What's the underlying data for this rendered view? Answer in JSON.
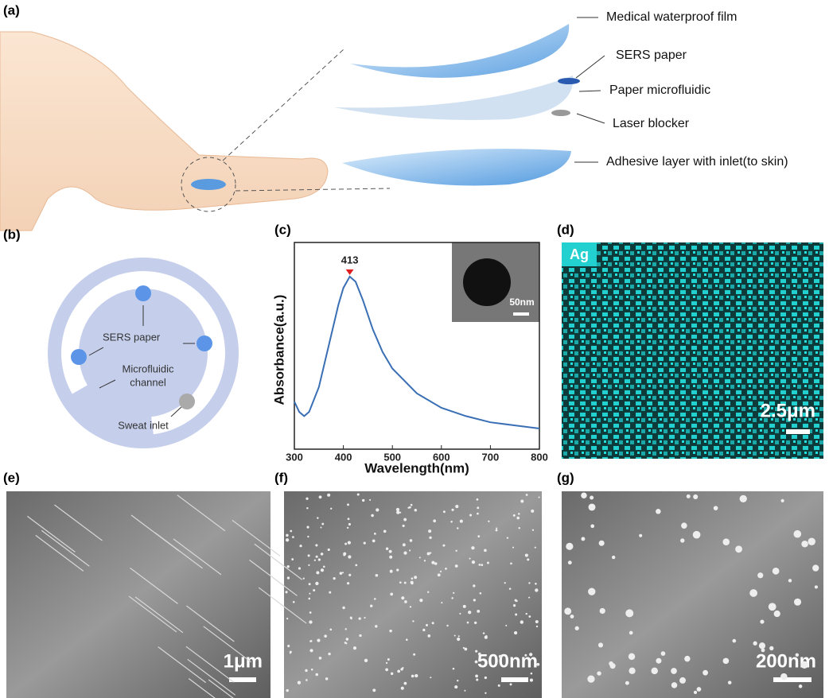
{
  "panel_labels": [
    "(a)",
    "(b)",
    "(c)",
    "(d)",
    "(e)",
    "(f)",
    "(g)"
  ],
  "panel_a": {
    "layers": [
      "Medical waterproof film",
      "SERS paper",
      "Paper microfluidic",
      "Laser blocker",
      "Adhesive layer with inlet(to skin)"
    ]
  },
  "panel_b": {
    "sers_paper": "SERS paper",
    "microfluidic_channel": [
      "Microfluidic",
      "channel"
    ],
    "sweat_inlet": "Sweat inlet"
  },
  "panel_d": {
    "element": "Ag",
    "scale_bar": "2.5μm"
  },
  "panel_e": {
    "scale_bar": "1μm"
  },
  "panel_f": {
    "scale_bar": "500nm"
  },
  "panel_g": {
    "scale_bar": "200nm"
  },
  "chart_data": {
    "type": "line",
    "xlabel": "Wavelength(nm)",
    "ylabel": "Absorbance(a.u.)",
    "x": [
      300,
      310,
      320,
      330,
      350,
      370,
      390,
      400,
      413,
      425,
      440,
      460,
      480,
      500,
      550,
      600,
      650,
      700,
      750,
      800
    ],
    "values": [
      0.23,
      0.18,
      0.16,
      0.18,
      0.3,
      0.5,
      0.7,
      0.78,
      0.835,
      0.81,
      0.72,
      0.58,
      0.47,
      0.39,
      0.27,
      0.2,
      0.16,
      0.13,
      0.115,
      0.1
    ],
    "color": "#3a6fb5",
    "xlim": [
      300,
      800
    ],
    "ylim": [
      0,
      1
    ],
    "xticks": [
      300,
      400,
      500,
      600,
      700,
      800
    ],
    "peak_x": 413,
    "inset_scale_bar": "50nm"
  }
}
